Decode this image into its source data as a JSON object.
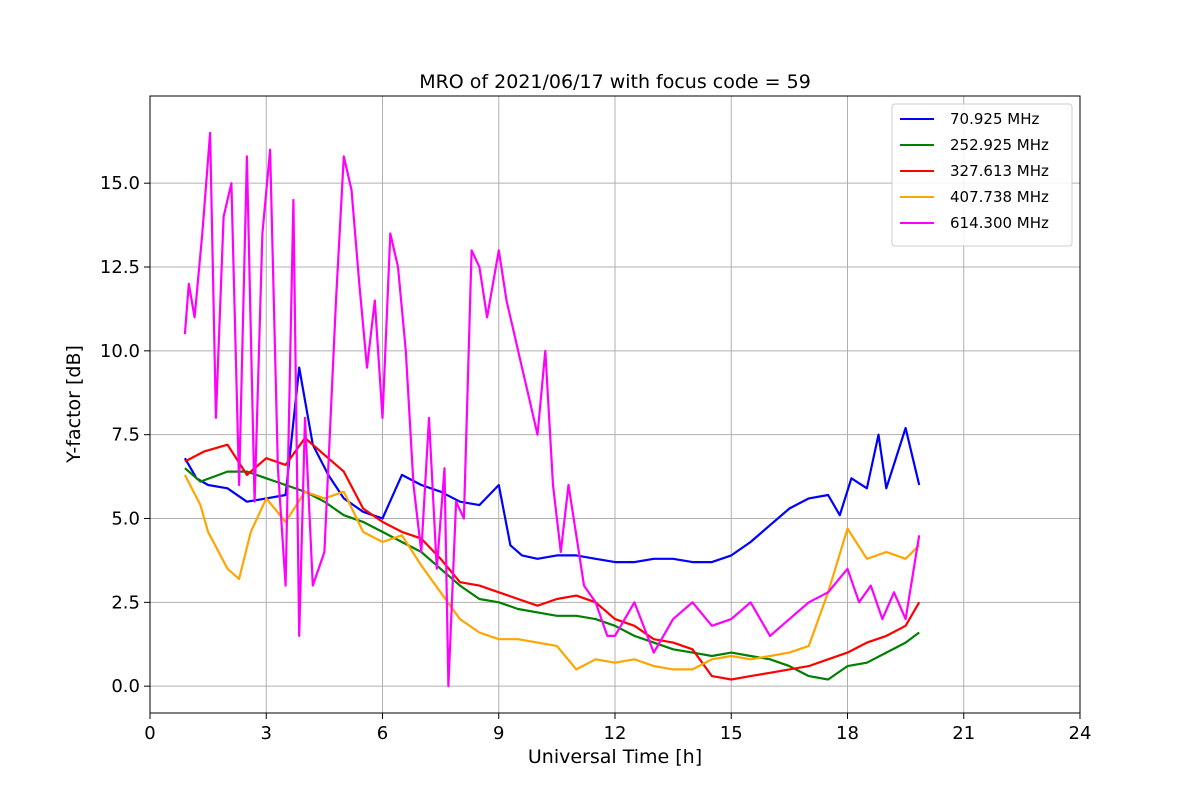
{
  "chart_data": {
    "type": "line",
    "title": "MRO of 2021/06/17 with focus code = 59",
    "xlabel": "Universal Time [h]",
    "ylabel": "Y-factor [dB]",
    "xlim": [
      0,
      24
    ],
    "ylim": [
      -0.8,
      17.6
    ],
    "xticks": [
      0,
      3,
      6,
      9,
      12,
      15,
      18,
      21,
      24
    ],
    "xtick_labels": [
      "0",
      "3",
      "6",
      "9",
      "12",
      "15",
      "18",
      "21",
      "24"
    ],
    "yticks": [
      0,
      2.5,
      5,
      7.5,
      10,
      12.5,
      15
    ],
    "ytick_labels": [
      "0.0",
      "2.5",
      "5.0",
      "7.5",
      "10.0",
      "12.5",
      "15.0"
    ],
    "grid": true,
    "legend_position": "top-right",
    "series": [
      {
        "name": " 70.925 MHz",
        "color": "#0000ff",
        "x": [
          0.9,
          1.2,
          1.5,
          2.0,
          2.5,
          3.0,
          3.5,
          3.85,
          4.2,
          4.6,
          5.0,
          5.5,
          6.0,
          6.5,
          7.0,
          7.5,
          8.0,
          8.5,
          9.0,
          9.3,
          9.6,
          10.0,
          10.5,
          11.0,
          11.5,
          12.0,
          12.5,
          13.0,
          13.5,
          14.0,
          14.5,
          15.0,
          15.5,
          16.0,
          16.5,
          17.0,
          17.5,
          17.8,
          18.1,
          18.5,
          18.8,
          19.0,
          19.5,
          19.85
        ],
        "y": [
          6.8,
          6.2,
          6.0,
          5.9,
          5.5,
          5.6,
          5.7,
          9.5,
          7.2,
          6.3,
          5.6,
          5.2,
          5.0,
          6.3,
          6.0,
          5.8,
          5.5,
          5.4,
          6.0,
          4.2,
          3.9,
          3.8,
          3.9,
          3.9,
          3.8,
          3.7,
          3.7,
          3.8,
          3.8,
          3.7,
          3.7,
          3.9,
          4.3,
          4.8,
          5.3,
          5.6,
          5.7,
          5.1,
          6.2,
          5.9,
          7.5,
          5.9,
          7.7,
          6.0
        ]
      },
      {
        "name": "252.925 MHz",
        "color": "#008000",
        "x": [
          0.9,
          1.3,
          2.0,
          2.5,
          3.0,
          3.5,
          4.0,
          4.5,
          5.0,
          5.5,
          6.0,
          6.5,
          7.0,
          7.5,
          8.0,
          8.5,
          9.0,
          9.5,
          10.0,
          10.5,
          11.0,
          11.5,
          12.0,
          12.5,
          13.0,
          13.5,
          14.0,
          14.5,
          15.0,
          15.5,
          16.0,
          16.5,
          17.0,
          17.5,
          18.0,
          18.5,
          19.0,
          19.5,
          19.85
        ],
        "y": [
          6.5,
          6.1,
          6.4,
          6.4,
          6.2,
          6.0,
          5.8,
          5.5,
          5.1,
          4.9,
          4.6,
          4.3,
          4.0,
          3.5,
          3.0,
          2.6,
          2.5,
          2.3,
          2.2,
          2.1,
          2.1,
          2.0,
          1.8,
          1.5,
          1.3,
          1.1,
          1.0,
          0.9,
          1.0,
          0.9,
          0.8,
          0.6,
          0.3,
          0.2,
          0.6,
          0.7,
          1.0,
          1.3,
          1.6
        ]
      },
      {
        "name": "327.613 MHz",
        "color": "#ff0000",
        "x": [
          0.9,
          1.4,
          2.0,
          2.5,
          3.0,
          3.5,
          4.0,
          4.5,
          5.0,
          5.5,
          6.0,
          6.5,
          7.0,
          7.5,
          8.0,
          8.5,
          9.0,
          9.5,
          10.0,
          10.5,
          11.0,
          11.5,
          12.0,
          12.5,
          13.0,
          13.5,
          14.0,
          14.5,
          15.0,
          15.5,
          16.0,
          16.5,
          17.0,
          17.5,
          18.0,
          18.5,
          19.0,
          19.5,
          19.85
        ],
        "y": [
          6.7,
          7.0,
          7.2,
          6.3,
          6.8,
          6.6,
          7.4,
          6.9,
          6.4,
          5.3,
          4.9,
          4.6,
          4.4,
          3.8,
          3.1,
          3.0,
          2.8,
          2.6,
          2.4,
          2.6,
          2.7,
          2.5,
          2.0,
          1.8,
          1.4,
          1.3,
          1.1,
          0.3,
          0.2,
          0.3,
          0.4,
          0.5,
          0.6,
          0.8,
          1.0,
          1.3,
          1.5,
          1.8,
          2.5
        ]
      },
      {
        "name": "407.738 MHz",
        "color": "#ffa500",
        "x": [
          0.9,
          1.3,
          1.5,
          2.0,
          2.3,
          2.6,
          3.0,
          3.5,
          4.0,
          4.5,
          5.0,
          5.5,
          6.0,
          6.5,
          7.0,
          7.5,
          8.0,
          8.5,
          9.0,
          9.5,
          10.0,
          10.5,
          11.0,
          11.5,
          12.0,
          12.5,
          13.0,
          13.5,
          14.0,
          14.5,
          15.0,
          15.5,
          16.0,
          16.5,
          17.0,
          17.5,
          18.0,
          18.5,
          19.0,
          19.5,
          19.85
        ],
        "y": [
          6.3,
          5.4,
          4.6,
          3.5,
          3.2,
          4.6,
          5.6,
          4.9,
          5.8,
          5.6,
          5.8,
          4.6,
          4.3,
          4.5,
          3.6,
          2.8,
          2.0,
          1.6,
          1.4,
          1.4,
          1.3,
          1.2,
          0.5,
          0.8,
          0.7,
          0.8,
          0.6,
          0.5,
          0.5,
          0.8,
          0.9,
          0.8,
          0.9,
          1.0,
          1.2,
          2.8,
          4.7,
          3.8,
          4.0,
          3.8,
          4.2
        ]
      },
      {
        "name": "614.300 MHz",
        "color": "#ff00ff",
        "x": [
          0.9,
          1.0,
          1.15,
          1.35,
          1.55,
          1.7,
          1.9,
          2.1,
          2.3,
          2.5,
          2.7,
          2.9,
          3.1,
          3.3,
          3.5,
          3.7,
          3.85,
          4.0,
          4.2,
          4.5,
          4.8,
          5.0,
          5.2,
          5.4,
          5.6,
          5.8,
          6.0,
          6.2,
          6.4,
          6.6,
          6.8,
          7.0,
          7.2,
          7.4,
          7.6,
          7.7,
          7.9,
          8.1,
          8.3,
          8.5,
          8.7,
          9.0,
          9.2,
          9.4,
          9.6,
          9.8,
          10.0,
          10.2,
          10.4,
          10.6,
          10.8,
          11.0,
          11.2,
          11.5,
          11.8,
          12.0,
          12.5,
          13.0,
          13.5,
          14.0,
          14.5,
          15.0,
          15.5,
          16.0,
          16.5,
          17.0,
          17.5,
          18.0,
          18.3,
          18.6,
          18.9,
          19.2,
          19.5,
          19.85
        ],
        "y": [
          10.5,
          12.0,
          11.0,
          13.5,
          16.5,
          8.0,
          14.0,
          15.0,
          6.0,
          15.8,
          5.5,
          13.5,
          16.0,
          6.5,
          3.0,
          14.5,
          1.5,
          8.0,
          3.0,
          4.0,
          11.5,
          15.8,
          14.8,
          12.0,
          9.5,
          11.5,
          8.0,
          13.5,
          12.5,
          10.0,
          6.0,
          4.0,
          8.0,
          3.5,
          6.5,
          0.0,
          5.5,
          5.0,
          13.0,
          12.5,
          11.0,
          13.0,
          11.5,
          10.5,
          9.5,
          8.5,
          7.5,
          10.0,
          6.0,
          4.0,
          6.0,
          4.5,
          3.0,
          2.5,
          1.5,
          1.5,
          2.5,
          1.0,
          2.0,
          2.5,
          1.8,
          2.0,
          2.5,
          1.5,
          2.0,
          2.5,
          2.8,
          3.5,
          2.5,
          3.0,
          2.0,
          2.8,
          2.0,
          4.5
        ]
      }
    ]
  }
}
